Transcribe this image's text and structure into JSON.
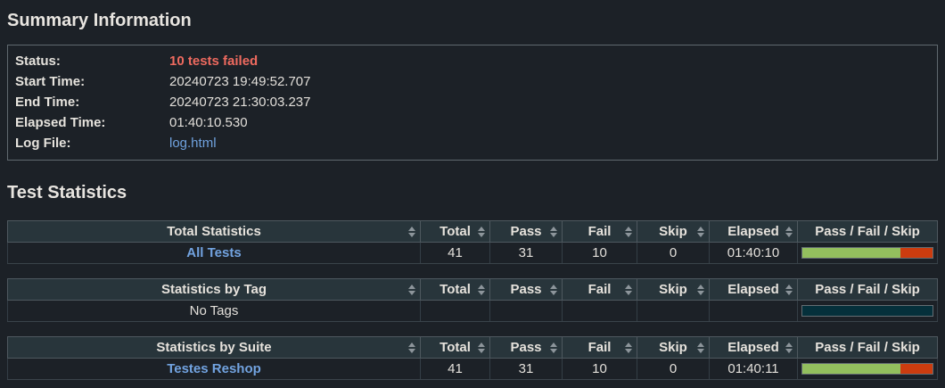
{
  "headings": {
    "summary": "Summary Information",
    "statistics": "Test Statistics"
  },
  "summary": {
    "status_label": "Status:",
    "status_value": "10 tests failed",
    "start_label": "Start Time:",
    "start_value": "20240723 19:49:52.707",
    "end_label": "End Time:",
    "end_value": "20240723 21:30:03.237",
    "elapsed_label": "Elapsed Time:",
    "elapsed_value": "01:40:10.530",
    "log_label": "Log File:",
    "log_value": "log.html"
  },
  "columns": {
    "total": "Total",
    "pass": "Pass",
    "fail": "Fail",
    "skip": "Skip",
    "elapsed": "Elapsed",
    "graph": "Pass / Fail / Skip"
  },
  "tables": {
    "total": {
      "title": "Total Statistics",
      "row": {
        "name": "All Tests",
        "total": "41",
        "pass": "31",
        "fail": "10",
        "skip": "0",
        "elapsed": "01:40:10",
        "pass_pct": 75.6,
        "fail_pct": 24.4
      }
    },
    "tag": {
      "title": "Statistics by Tag",
      "row": {
        "name": "No Tags",
        "total": "",
        "pass": "",
        "fail": "",
        "skip": "",
        "elapsed": "",
        "pass_pct": 0,
        "fail_pct": 0
      }
    },
    "suite": {
      "title": "Statistics by Suite",
      "row": {
        "name": "Testes Reshop",
        "total": "41",
        "pass": "31",
        "fail": "10",
        "skip": "0",
        "elapsed": "01:40:11",
        "pass_pct": 75.6,
        "fail_pct": 24.4
      }
    }
  },
  "colors": {
    "link": "#72a3e0",
    "status_fail_text": "#ee6a5f",
    "bar_pass": "#93bf5e",
    "bar_fail": "#cc3c0f",
    "bar_empty": "#05303b",
    "header_bg": "#28353b",
    "page_bg": "#1c2127"
  }
}
